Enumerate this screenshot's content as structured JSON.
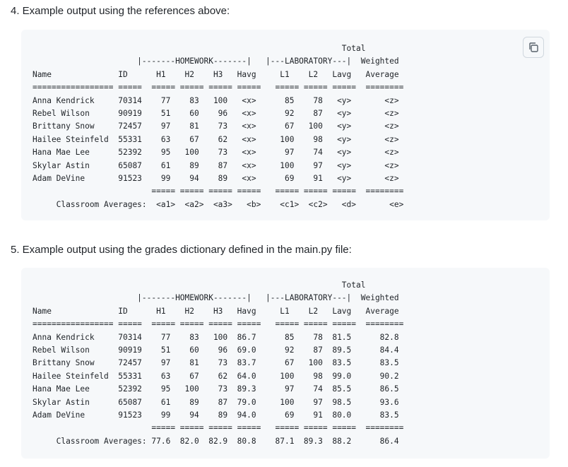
{
  "sections": [
    {
      "heading": "4. Example output using the references above:",
      "code": "                                                                 Total\n                      |-------HOMEWORK-------|   |---LABORATORY---|  Weighted\nName              ID      H1    H2    H3   Havg     L1    L2   Lavg   Average\n================= =====  ===== ===== ===== =====   ===== ===== =====  ========\nAnna Kendrick     70314    77    83   100   <x>      85    78   <y>       <z>\nRebel Wilson      90919    51    60    96   <x>      92    87   <y>       <z>\nBrittany Snow     72457    97    81    73   <x>      67   100   <y>       <z>\nHailee Steinfeld  55331    63    67    62   <x>     100    98   <y>       <z>\nHana Mae Lee      52392    95   100    73   <x>      97    74   <y>       <z>\nSkylar Astin      65087    61    89    87   <x>     100    97   <y>       <z>\nAdam DeVine       91523    99    94    89   <x>      69    91   <y>       <z>\n                         ===== ===== ===== =====   ===== ===== =====  ========\n     Classroom Averages:  <a1>  <a2>  <a3>   <b>    <c1>  <c2>   <d>       <e>"
    },
    {
      "heading": "5. Example output using the grades dictionary defined in the main.py file:",
      "code": "                                                                 Total\n                      |-------HOMEWORK-------|   |---LABORATORY---|  Weighted\nName              ID      H1    H2    H3   Havg     L1    L2   Lavg   Average\n================= =====  ===== ===== ===== =====   ===== ===== =====  ========\nAnna Kendrick     70314    77    83   100  86.7      85    78  81.5      82.8\nRebel Wilson      90919    51    60    96  69.0      92    87  89.5      84.4\nBrittany Snow     72457    97    81    73  83.7      67   100  83.5      83.5\nHailee Steinfeld  55331    63    67    62  64.0     100    98  99.0      90.2\nHana Mae Lee      52392    95   100    73  89.3      97    74  85.5      86.5\nSkylar Astin      65087    61    89    87  79.0     100    97  98.5      93.6\nAdam DeVine       91523    99    94    89  94.0      69    91  80.0      83.5\n                         ===== ===== ===== =====   ===== ===== =====  ========\n     Classroom Averages: 77.6  82.0  82.9  80.8    87.1  89.3  88.2      86.4"
    }
  ],
  "icons": {
    "copy": "copy-icon"
  }
}
